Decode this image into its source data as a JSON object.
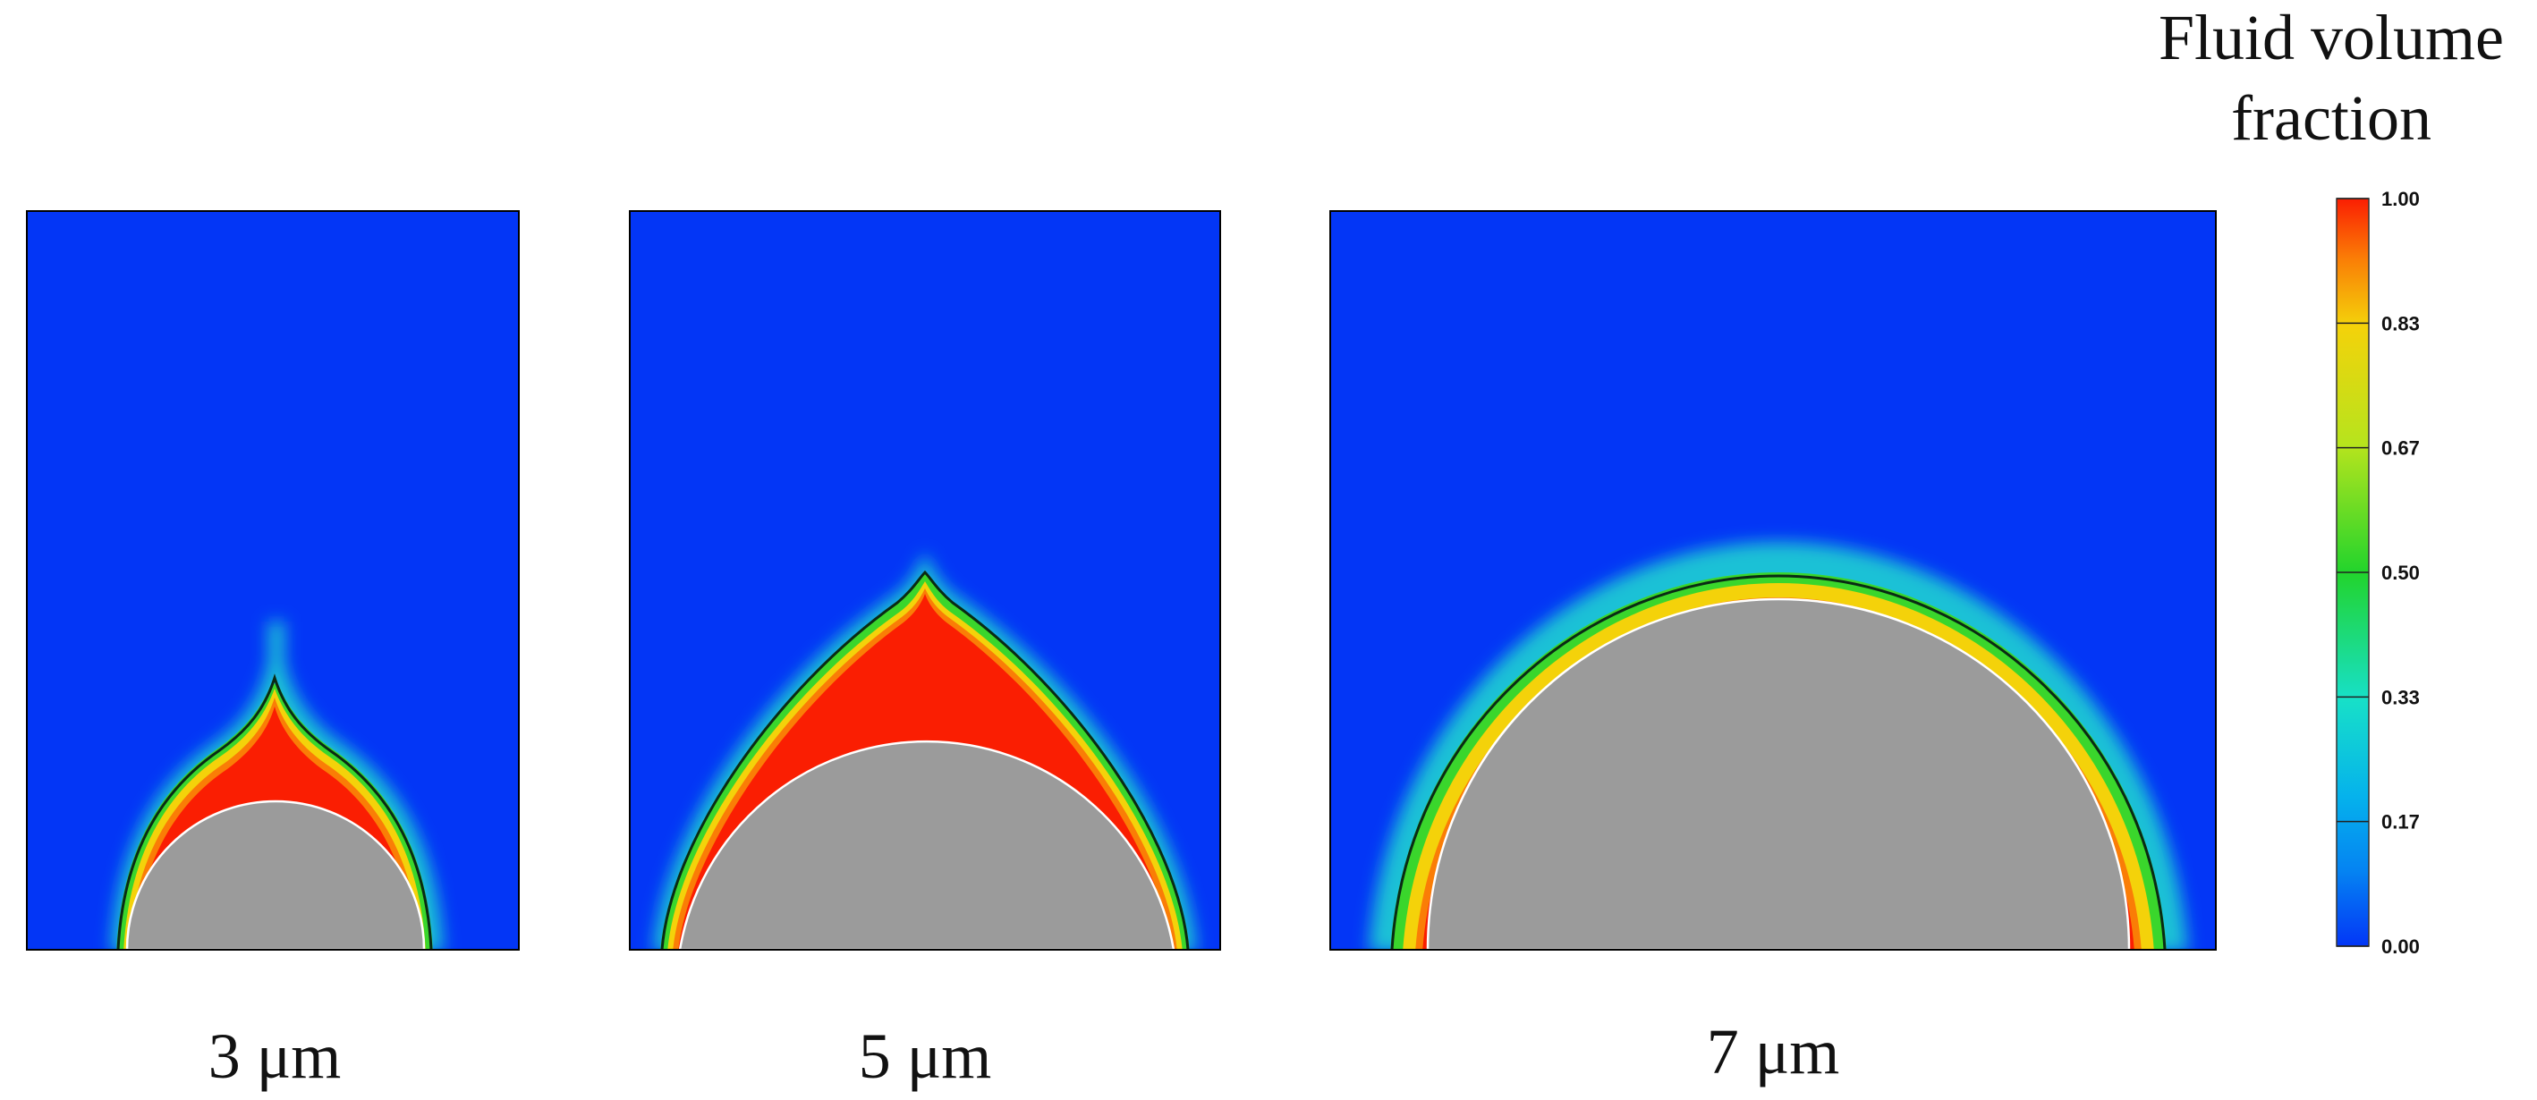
{
  "panels": [
    {
      "label": "3 μm"
    },
    {
      "label": "5 μm"
    },
    {
      "label": "7 μm"
    }
  ],
  "legend": {
    "title_line1": "Fluid volume",
    "title_line2": "fraction",
    "ticks": [
      "1.00",
      "0.83",
      "0.67",
      "0.50",
      "0.33",
      "0.17",
      "0.00"
    ]
  },
  "colors": {
    "background_fluid": "#0336f6",
    "particle": "#9b9b9b",
    "liquid": "#fa1e02",
    "interface_line": "#0a2a14",
    "colormap": [
      "#0336f6",
      "#05b2ec",
      "#17e0c8",
      "#22d42c",
      "#b6e41d",
      "#f4d20a",
      "#fa7d06",
      "#fa1e02"
    ]
  }
}
